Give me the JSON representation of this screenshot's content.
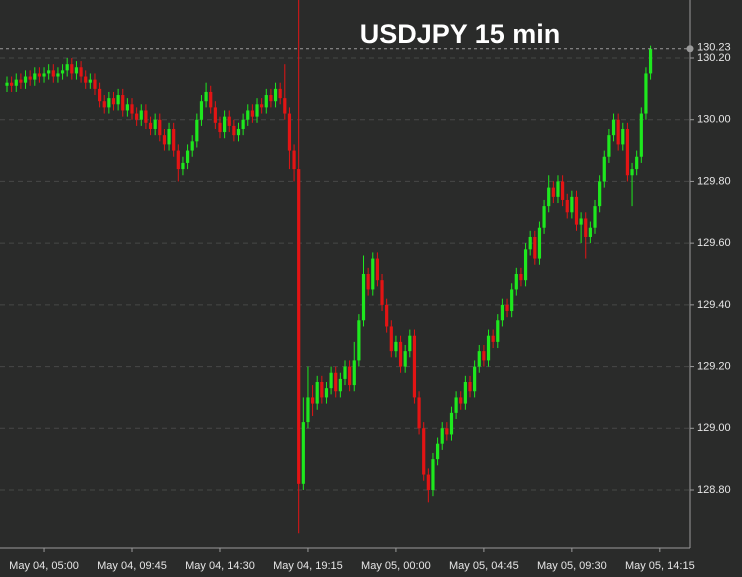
{
  "chart_data": {
    "type": "candlestick",
    "title": "USDJPY 15 min",
    "categories": [
      null,
      null,
      null,
      null,
      null,
      null,
      null,
      null,
      "May 04, 05:00",
      null,
      null,
      null,
      null,
      null,
      null,
      null,
      null,
      null,
      null,
      null,
      null,
      null,
      null,
      null,
      null,
      null,
      null,
      "May 04, 09:45",
      null,
      null,
      null,
      null,
      null,
      null,
      null,
      null,
      null,
      null,
      null,
      null,
      null,
      null,
      null,
      null,
      null,
      null,
      "May 04, 14:30",
      null,
      null,
      null,
      null,
      null,
      null,
      null,
      null,
      null,
      null,
      null,
      null,
      null,
      null,
      null,
      null,
      null,
      null,
      "May 04, 19:15",
      null,
      null,
      null,
      null,
      null,
      null,
      null,
      null,
      null,
      null,
      null,
      null,
      null,
      null,
      null,
      null,
      null,
      null,
      "May 05, 00:00",
      null,
      null,
      null,
      null,
      null,
      null,
      null,
      null,
      null,
      null,
      null,
      null,
      null,
      null,
      null,
      null,
      null,
      null,
      "May 05, 04:45",
      null,
      null,
      null,
      null,
      null,
      null,
      null,
      null,
      null,
      null,
      null,
      null,
      null,
      null,
      null,
      null,
      null,
      null,
      "May 05, 09:30",
      null,
      null,
      null,
      null,
      null,
      null,
      null,
      null,
      null,
      null,
      null,
      null,
      null,
      null,
      null,
      null,
      null,
      null,
      "May 05, 14:15"
    ],
    "open": [
      130.11,
      130.12,
      130.11,
      130.13,
      130.12,
      130.14,
      130.13,
      130.15,
      130.14,
      130.15,
      130.16,
      130.14,
      130.15,
      130.16,
      130.18,
      130.15,
      130.17,
      130.14,
      130.12,
      130.13,
      130.1,
      130.06,
      130.04,
      130.07,
      130.05,
      130.08,
      130.03,
      130.05,
      130.02,
      130.0,
      130.03,
      129.99,
      129.97,
      130.0,
      129.95,
      129.92,
      129.97,
      129.9,
      129.84,
      129.86,
      129.9,
      129.93,
      130.0,
      130.06,
      130.09,
      130.04,
      129.99,
      129.96,
      130.01,
      129.98,
      129.95,
      129.97,
      130.0,
      130.03,
      130.01,
      130.05,
      130.04,
      130.08,
      130.06,
      130.1,
      130.07,
      130.02,
      129.9,
      129.84,
      128.82,
      129.02,
      129.1,
      129.08,
      129.15,
      129.1,
      129.13,
      129.18,
      129.12,
      129.16,
      129.2,
      129.14,
      129.22,
      129.35,
      129.5,
      129.45,
      129.55,
      129.48,
      129.4,
      129.33,
      129.25,
      129.28,
      129.2,
      129.25,
      129.3,
      129.1,
      129.0,
      128.85,
      128.8,
      128.9,
      128.95,
      129.0,
      128.98,
      129.05,
      129.1,
      129.08,
      129.15,
      129.12,
      129.2,
      129.25,
      129.22,
      129.3,
      129.28,
      129.35,
      129.4,
      129.38,
      129.45,
      129.5,
      129.48,
      129.58,
      129.62,
      129.55,
      129.65,
      129.72,
      129.78,
      129.75,
      129.8,
      129.74,
      129.7,
      129.75,
      129.66,
      129.68,
      129.62,
      129.65,
      129.72,
      129.8,
      129.88,
      129.95,
      130.0,
      129.92,
      129.97,
      129.82,
      129.84,
      129.88,
      130.02,
      130.15,
      null,
      null
    ],
    "high": [
      130.14,
      130.14,
      130.15,
      130.15,
      130.16,
      130.16,
      130.17,
      130.17,
      130.17,
      130.18,
      130.18,
      130.17,
      130.18,
      130.2,
      130.2,
      130.19,
      130.19,
      130.16,
      130.15,
      130.15,
      130.12,
      130.08,
      130.09,
      130.09,
      130.1,
      130.1,
      130.07,
      130.07,
      130.04,
      130.05,
      130.05,
      130.01,
      130.02,
      130.02,
      129.97,
      129.99,
      129.99,
      129.92,
      129.88,
      129.92,
      129.95,
      130.02,
      130.08,
      130.12,
      130.11,
      130.06,
      130.01,
      130.03,
      130.03,
      130.0,
      129.99,
      130.02,
      130.05,
      130.05,
      130.07,
      130.07,
      130.1,
      130.1,
      130.12,
      130.12,
      130.18,
      130.04,
      129.92,
      130.39,
      129.1,
      129.2,
      129.14,
      129.17,
      129.17,
      129.15,
      129.2,
      129.2,
      129.18,
      129.22,
      129.22,
      129.28,
      129.37,
      129.56,
      129.52,
      129.57,
      129.57,
      129.5,
      129.42,
      129.35,
      129.3,
      129.3,
      129.27,
      129.32,
      129.32,
      129.12,
      129.02,
      128.87,
      128.92,
      128.97,
      129.02,
      129.02,
      129.07,
      129.12,
      129.12,
      129.17,
      129.17,
      129.22,
      129.27,
      129.27,
      129.32,
      129.32,
      129.37,
      129.42,
      129.42,
      129.47,
      129.52,
      129.52,
      129.6,
      129.64,
      129.64,
      129.67,
      129.74,
      129.82,
      129.8,
      129.82,
      129.82,
      129.76,
      129.77,
      129.77,
      129.7,
      129.7,
      129.67,
      129.74,
      129.82,
      129.9,
      129.97,
      130.02,
      130.02,
      129.99,
      129.99,
      129.86,
      129.9,
      130.04,
      130.17,
      130.24,
      null,
      null
    ],
    "low": [
      130.09,
      130.09,
      130.09,
      130.1,
      130.1,
      130.11,
      130.11,
      130.12,
      130.12,
      130.13,
      130.12,
      130.12,
      130.13,
      130.14,
      130.13,
      130.13,
      130.12,
      130.1,
      130.1,
      130.08,
      130.04,
      130.02,
      130.02,
      130.03,
      130.03,
      130.01,
      130.01,
      130.0,
      129.98,
      129.98,
      129.97,
      129.95,
      129.95,
      129.93,
      129.9,
      129.9,
      129.88,
      129.8,
      129.82,
      129.84,
      129.88,
      129.91,
      129.98,
      130.04,
      130.02,
      129.97,
      129.94,
      129.94,
      129.96,
      129.93,
      129.93,
      129.95,
      129.98,
      129.99,
      129.99,
      130.02,
      130.02,
      130.04,
      130.04,
      130.05,
      130.0,
      129.84,
      129.8,
      128.66,
      128.8,
      129.0,
      129.04,
      129.06,
      129.08,
      129.08,
      129.11,
      129.1,
      129.1,
      129.14,
      129.12,
      129.12,
      129.2,
      129.33,
      129.43,
      129.43,
      129.46,
      129.38,
      129.31,
      129.23,
      129.23,
      129.18,
      129.18,
      129.23,
      129.08,
      128.98,
      128.83,
      128.76,
      128.78,
      128.88,
      128.93,
      128.96,
      128.96,
      129.03,
      129.06,
      129.06,
      129.1,
      129.1,
      129.18,
      129.2,
      129.2,
      129.26,
      129.26,
      129.33,
      129.36,
      129.36,
      129.43,
      129.46,
      129.46,
      129.56,
      129.53,
      129.53,
      129.63,
      129.7,
      129.73,
      129.73,
      129.72,
      129.68,
      129.68,
      129.64,
      129.6,
      129.55,
      129.6,
      129.63,
      129.7,
      129.78,
      129.86,
      129.93,
      129.9,
      129.9,
      129.8,
      129.72,
      129.82,
      129.86,
      130.0,
      130.13,
      null,
      null
    ],
    "close": [
      130.12,
      130.11,
      130.13,
      130.12,
      130.14,
      130.13,
      130.15,
      130.14,
      130.15,
      130.16,
      130.14,
      130.15,
      130.16,
      130.18,
      130.15,
      130.17,
      130.14,
      130.12,
      130.13,
      130.1,
      130.06,
      130.04,
      130.07,
      130.05,
      130.08,
      130.03,
      130.05,
      130.02,
      130.0,
      130.03,
      129.99,
      129.97,
      130.0,
      129.95,
      129.92,
      129.97,
      129.9,
      129.84,
      129.86,
      129.9,
      129.93,
      130.0,
      130.06,
      130.09,
      130.04,
      129.99,
      129.96,
      130.01,
      129.98,
      129.95,
      129.97,
      130.0,
      130.03,
      130.01,
      130.05,
      130.04,
      130.08,
      130.06,
      130.1,
      130.07,
      130.02,
      129.9,
      129.84,
      128.82,
      129.02,
      129.1,
      129.08,
      129.15,
      129.1,
      129.13,
      129.18,
      129.12,
      129.16,
      129.2,
      129.14,
      129.22,
      129.35,
      129.5,
      129.45,
      129.55,
      129.48,
      129.4,
      129.33,
      129.25,
      129.28,
      129.2,
      129.25,
      129.3,
      129.1,
      129.0,
      128.85,
      128.8,
      128.9,
      128.95,
      129.0,
      128.98,
      129.05,
      129.1,
      129.08,
      129.15,
      129.12,
      129.2,
      129.25,
      129.22,
      129.3,
      129.28,
      129.35,
      129.4,
      129.38,
      129.45,
      129.5,
      129.48,
      129.58,
      129.62,
      129.55,
      129.65,
      129.72,
      129.78,
      129.75,
      129.8,
      129.74,
      129.7,
      129.75,
      129.66,
      129.68,
      129.62,
      129.65,
      129.72,
      129.8,
      129.88,
      129.95,
      130.0,
      129.92,
      129.97,
      129.82,
      129.84,
      129.88,
      130.02,
      130.15,
      130.23,
      null,
      null
    ],
    "up_color": "#1ee81e",
    "down_color": "#e31414",
    "last_price": 130.23,
    "ylim": [
      128.612,
      130.388
    ],
    "yticks": [
      {
        "value": 128.8,
        "label": "128.80"
      },
      {
        "value": 129,
        "label": "129.00"
      },
      {
        "value": 129.2,
        "label": "129.20"
      },
      {
        "value": 129.4,
        "label": "129.40"
      },
      {
        "value": 129.6,
        "label": "129.60"
      },
      {
        "value": 129.8,
        "label": "129.80"
      },
      {
        "value": 130,
        "label": "130.00"
      },
      {
        "value": 130.2,
        "label": "130.20"
      }
    ],
    "grid": true
  }
}
